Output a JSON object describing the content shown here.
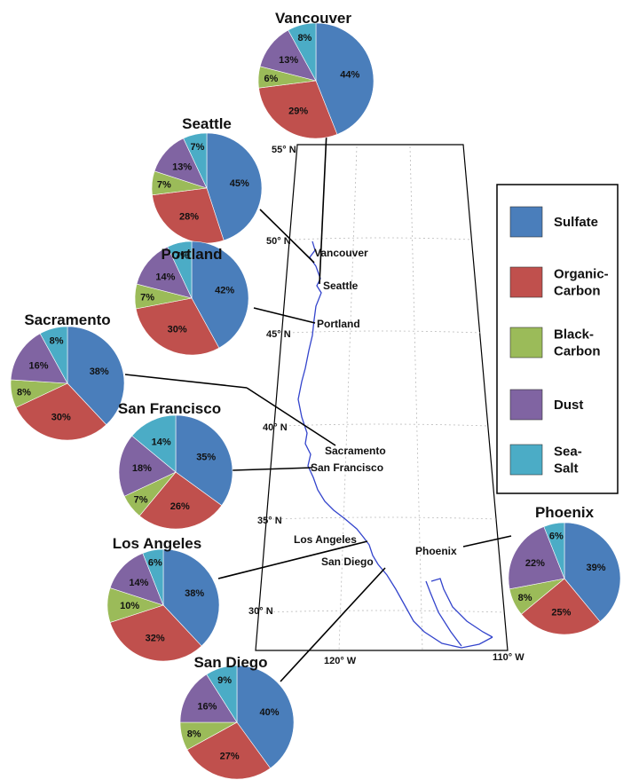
{
  "colors": {
    "Sulfate": "#4a7ebb",
    "Organic-Carbon": "#c0504d",
    "Black-Carbon": "#9bbb59",
    "Dust": "#8064a2",
    "Sea-Salt": "#4bacc6"
  },
  "legend": [
    {
      "key": "Sulfate",
      "lines": [
        "Sulfate"
      ]
    },
    {
      "key": "Organic-Carbon",
      "lines": [
        "Organic-",
        "Carbon"
      ]
    },
    {
      "key": "Black-Carbon",
      "lines": [
        "Black-",
        "Carbon"
      ]
    },
    {
      "key": "Dust",
      "lines": [
        "Dust"
      ]
    },
    {
      "key": "Sea-Salt",
      "lines": [
        "Sea-",
        "Salt"
      ]
    }
  ],
  "map": {
    "lat_labels": [
      "55° N",
      "50° N",
      "45° N",
      "40° N",
      "35° N",
      "30° N"
    ],
    "lon_labels": [
      "120° W",
      "110° W"
    ],
    "city_labels": [
      "Vancouver",
      "Seattle",
      "Portland",
      "Sacramento",
      "San Francisco",
      "Los Angeles",
      "San Diego",
      "Phoenix"
    ]
  },
  "chart_data": {
    "type": "pie",
    "components": [
      "Sulfate",
      "Organic-Carbon",
      "Black-Carbon",
      "Dust",
      "Sea-Salt"
    ],
    "cities": [
      {
        "name": "Vancouver",
        "values": [
          44,
          29,
          6,
          13,
          8
        ]
      },
      {
        "name": "Seattle",
        "values": [
          45,
          28,
          7,
          13,
          7
        ]
      },
      {
        "name": "Portland",
        "values": [
          42,
          30,
          7,
          14,
          7
        ]
      },
      {
        "name": "Sacramento",
        "values": [
          38,
          30,
          8,
          16,
          8
        ]
      },
      {
        "name": "San Francisco",
        "values": [
          35,
          26,
          7,
          18,
          14
        ]
      },
      {
        "name": "Los Angeles",
        "values": [
          38,
          32,
          10,
          14,
          6
        ]
      },
      {
        "name": "San Diego",
        "values": [
          40,
          27,
          8,
          16,
          9
        ]
      },
      {
        "name": "Phoenix",
        "values": [
          39,
          25,
          8,
          22,
          6
        ]
      }
    ]
  }
}
